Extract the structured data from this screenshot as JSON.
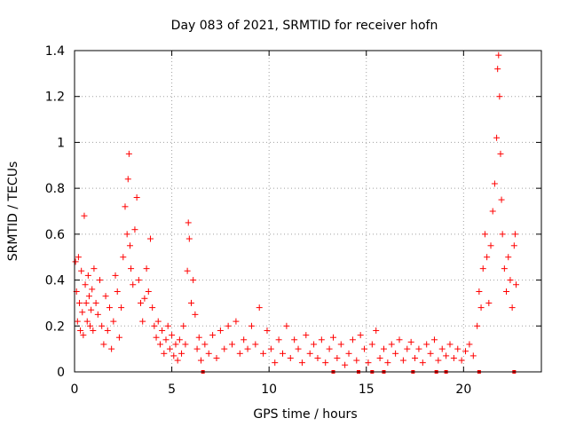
{
  "chart_data": {
    "type": "scatter",
    "title": "Day 083 of 2021, SRMTID for receiver hofn",
    "xlabel": "GPS time / hours",
    "ylabel": "SRMTID / TECUs",
    "xlim": [
      0,
      24
    ],
    "ylim": [
      0,
      1.4
    ],
    "xticks": [
      0,
      5,
      10,
      15,
      20
    ],
    "xtick_labels": [
      "0",
      "5",
      "10",
      "15",
      "20"
    ],
    "yticks": [
      0,
      0.2,
      0.4,
      0.6,
      0.8,
      1.0,
      1.2,
      1.4
    ],
    "ytick_labels": [
      "0",
      "0.2",
      "0.4",
      "0.6",
      "0.8",
      "1",
      "1.2",
      "1.4"
    ],
    "grid": true,
    "marker": "+",
    "color": "#ff0000",
    "series": [
      {
        "name": "SRMTID",
        "points": [
          [
            0.05,
            0.48
          ],
          [
            0.1,
            0.35
          ],
          [
            0.15,
            0.22
          ],
          [
            0.2,
            0.5
          ],
          [
            0.25,
            0.3
          ],
          [
            0.3,
            0.18
          ],
          [
            0.35,
            0.44
          ],
          [
            0.4,
            0.26
          ],
          [
            0.45,
            0.16
          ],
          [
            0.5,
            0.68
          ],
          [
            0.55,
            0.38
          ],
          [
            0.6,
            0.3
          ],
          [
            0.65,
            0.22
          ],
          [
            0.7,
            0.42
          ],
          [
            0.75,
            0.33
          ],
          [
            0.8,
            0.2
          ],
          [
            0.85,
            0.27
          ],
          [
            0.9,
            0.36
          ],
          [
            0.95,
            0.18
          ],
          [
            1.0,
            0.45
          ],
          [
            1.1,
            0.3
          ],
          [
            1.2,
            0.25
          ],
          [
            1.3,
            0.4
          ],
          [
            1.4,
            0.2
          ],
          [
            1.5,
            0.12
          ],
          [
            1.6,
            0.33
          ],
          [
            1.7,
            0.18
          ],
          [
            1.8,
            0.28
          ],
          [
            1.9,
            0.1
          ],
          [
            2.0,
            0.22
          ],
          [
            2.1,
            0.42
          ],
          [
            2.2,
            0.35
          ],
          [
            2.3,
            0.15
          ],
          [
            2.4,
            0.28
          ],
          [
            2.5,
            0.5
          ],
          [
            2.6,
            0.72
          ],
          [
            2.7,
            0.6
          ],
          [
            2.75,
            0.84
          ],
          [
            2.8,
            0.95
          ],
          [
            2.85,
            0.55
          ],
          [
            2.9,
            0.45
          ],
          [
            3.0,
            0.38
          ],
          [
            3.1,
            0.62
          ],
          [
            3.2,
            0.76
          ],
          [
            3.3,
            0.4
          ],
          [
            3.4,
            0.3
          ],
          [
            3.5,
            0.22
          ],
          [
            3.6,
            0.32
          ],
          [
            3.7,
            0.45
          ],
          [
            3.8,
            0.35
          ],
          [
            3.9,
            0.58
          ],
          [
            4.0,
            0.28
          ],
          [
            4.1,
            0.2
          ],
          [
            4.2,
            0.15
          ],
          [
            4.3,
            0.22
          ],
          [
            4.4,
            0.12
          ],
          [
            4.5,
            0.18
          ],
          [
            4.6,
            0.08
          ],
          [
            4.7,
            0.14
          ],
          [
            4.8,
            0.2
          ],
          [
            4.9,
            0.1
          ],
          [
            5.0,
            0.16
          ],
          [
            5.1,
            0.07
          ],
          [
            5.2,
            0.12
          ],
          [
            5.3,
            0.05
          ],
          [
            5.4,
            0.14
          ],
          [
            5.5,
            0.08
          ],
          [
            5.6,
            0.2
          ],
          [
            5.7,
            0.12
          ],
          [
            5.8,
            0.44
          ],
          [
            5.85,
            0.65
          ],
          [
            5.9,
            0.58
          ],
          [
            6.0,
            0.3
          ],
          [
            6.1,
            0.4
          ],
          [
            6.2,
            0.25
          ],
          [
            6.3,
            0.1
          ],
          [
            6.4,
            0.15
          ],
          [
            6.5,
            0.05
          ],
          [
            6.7,
            0.12
          ],
          [
            6.9,
            0.08
          ],
          [
            7.1,
            0.16
          ],
          [
            7.3,
            0.06
          ],
          [
            7.5,
            0.18
          ],
          [
            7.7,
            0.1
          ],
          [
            7.9,
            0.2
          ],
          [
            8.1,
            0.12
          ],
          [
            8.3,
            0.22
          ],
          [
            8.5,
            0.08
          ],
          [
            8.7,
            0.14
          ],
          [
            8.9,
            0.1
          ],
          [
            9.1,
            0.2
          ],
          [
            9.3,
            0.12
          ],
          [
            9.5,
            0.28
          ],
          [
            9.7,
            0.08
          ],
          [
            9.9,
            0.18
          ],
          [
            10.1,
            0.1
          ],
          [
            10.3,
            0.04
          ],
          [
            10.5,
            0.14
          ],
          [
            10.7,
            0.08
          ],
          [
            10.9,
            0.2
          ],
          [
            11.1,
            0.06
          ],
          [
            11.3,
            0.14
          ],
          [
            11.5,
            0.1
          ],
          [
            11.7,
            0.04
          ],
          [
            11.9,
            0.16
          ],
          [
            12.1,
            0.08
          ],
          [
            12.3,
            0.12
          ],
          [
            12.5,
            0.06
          ],
          [
            12.7,
            0.14
          ],
          [
            12.9,
            0.04
          ],
          [
            13.1,
            0.1
          ],
          [
            13.3,
            0.15
          ],
          [
            13.5,
            0.06
          ],
          [
            13.7,
            0.12
          ],
          [
            13.9,
            0.03
          ],
          [
            14.1,
            0.08
          ],
          [
            14.3,
            0.14
          ],
          [
            14.5,
            0.05
          ],
          [
            14.7,
            0.16
          ],
          [
            14.9,
            0.1
          ],
          [
            15.1,
            0.04
          ],
          [
            15.3,
            0.12
          ],
          [
            15.5,
            0.18
          ],
          [
            15.7,
            0.06
          ],
          [
            15.9,
            0.1
          ],
          [
            16.1,
            0.04
          ],
          [
            16.3,
            0.12
          ],
          [
            16.5,
            0.08
          ],
          [
            16.7,
            0.14
          ],
          [
            16.9,
            0.05
          ],
          [
            17.1,
            0.1
          ],
          [
            17.3,
            0.13
          ],
          [
            17.5,
            0.06
          ],
          [
            17.7,
            0.1
          ],
          [
            17.9,
            0.04
          ],
          [
            18.1,
            0.12
          ],
          [
            18.3,
            0.08
          ],
          [
            18.5,
            0.14
          ],
          [
            18.7,
            0.05
          ],
          [
            18.9,
            0.1
          ],
          [
            19.1,
            0.07
          ],
          [
            19.3,
            0.12
          ],
          [
            19.5,
            0.06
          ],
          [
            19.7,
            0.1
          ],
          [
            19.9,
            0.05
          ],
          [
            20.1,
            0.09
          ],
          [
            20.3,
            0.12
          ],
          [
            20.5,
            0.07
          ],
          [
            20.7,
            0.2
          ],
          [
            20.8,
            0.35
          ],
          [
            20.9,
            0.28
          ],
          [
            21.0,
            0.45
          ],
          [
            21.1,
            0.6
          ],
          [
            21.2,
            0.5
          ],
          [
            21.3,
            0.3
          ],
          [
            21.4,
            0.55
          ],
          [
            21.5,
            0.7
          ],
          [
            21.6,
            0.82
          ],
          [
            21.7,
            1.02
          ],
          [
            21.75,
            1.32
          ],
          [
            21.8,
            1.38
          ],
          [
            21.85,
            1.2
          ],
          [
            21.9,
            0.95
          ],
          [
            21.95,
            0.75
          ],
          [
            22.0,
            0.6
          ],
          [
            22.1,
            0.45
          ],
          [
            22.2,
            0.35
          ],
          [
            22.3,
            0.5
          ],
          [
            22.4,
            0.4
          ],
          [
            22.5,
            0.28
          ],
          [
            22.6,
            0.55
          ],
          [
            22.65,
            0.6
          ],
          [
            22.7,
            0.38
          ]
        ]
      }
    ],
    "bottom_flags_x": [
      6.6,
      13.3,
      14.6,
      15.3,
      15.9,
      17.4,
      18.6,
      19.1,
      20.8,
      22.6
    ]
  }
}
